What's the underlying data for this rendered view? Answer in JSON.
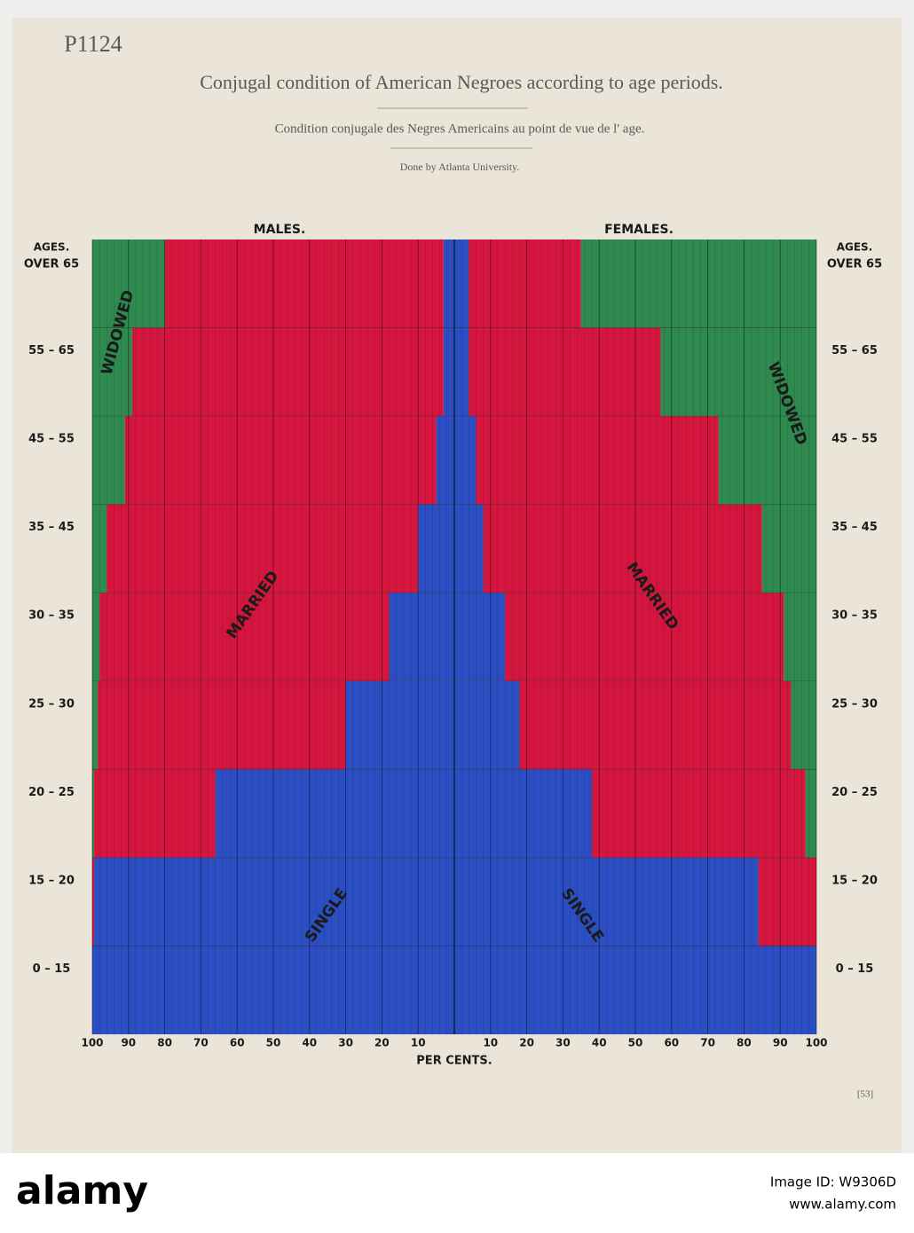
{
  "chart_data": {
    "type": "pyramid",
    "title": "Conjugal condition of American Negroes according to age periods.",
    "subtitle": "Condition conjugale des Negres Americains au point de vue de l' age.",
    "credit": "Done by Atlanta University.",
    "note": "P1124",
    "page_number": "[53]",
    "ages_label": "AGES.",
    "categories": [
      "OVER 65",
      "55 – 65",
      "45 – 55",
      "35 – 45",
      "30 – 35",
      "25 – 30",
      "20 – 25",
      "15 – 20",
      "0 – 15"
    ],
    "xlabel": "PER CENTS.",
    "xlim": [
      0,
      100
    ],
    "xticks": [
      10,
      20,
      30,
      40,
      50,
      60,
      70,
      80,
      90,
      100
    ],
    "groups": [
      {
        "name": "MALES.",
        "series": [
          {
            "name": "SINGLE",
            "color": "#2b4fc2",
            "values": [
              3,
              3,
              5,
              10,
              18,
              30,
              66,
              99.5,
              100
            ]
          },
          {
            "name": "MARRIED",
            "color": "#d4163f",
            "values": [
              77,
              86,
              86,
              86,
              80,
              68.5,
              33.5,
              0.5,
              0
            ]
          },
          {
            "name": "WIDOWED",
            "color": "#2f8a4f",
            "values": [
              20,
              11,
              9,
              4,
              2,
              1.5,
              0.5,
              0,
              0
            ]
          }
        ]
      },
      {
        "name": "FEMALES.",
        "series": [
          {
            "name": "SINGLE",
            "color": "#2b4fc2",
            "values": [
              4,
              4,
              6,
              8,
              14,
              18,
              38,
              84,
              100
            ]
          },
          {
            "name": "MARRIED",
            "color": "#d4163f",
            "values": [
              31,
              53,
              67,
              77,
              77,
              75,
              59,
              16,
              0
            ]
          },
          {
            "name": "WIDOWED",
            "color": "#2f8a4f",
            "values": [
              65,
              43,
              27,
              15,
              9,
              7,
              3,
              0,
              0
            ]
          }
        ]
      }
    ]
  },
  "watermark": {
    "brand": "alamy",
    "image_id": "Image ID: W9306D",
    "url": "www.alamy.com"
  }
}
